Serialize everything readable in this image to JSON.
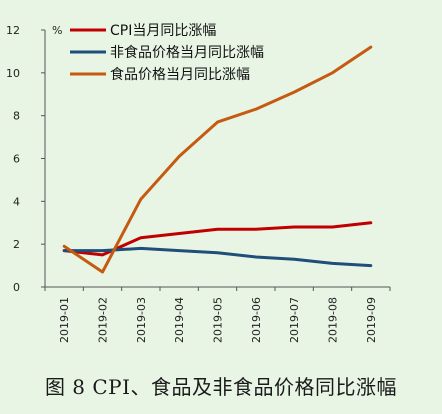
{
  "caption": "图 8   CPI、食品及非食品价格同比涨幅",
  "chart_data": {
    "type": "line",
    "title": "",
    "xlabel": "",
    "ylabel": "%",
    "ylim": [
      0,
      12
    ],
    "yticks": [
      0,
      2,
      4,
      6,
      8,
      10,
      12
    ],
    "categories": [
      "2019-01",
      "2019-02",
      "2019-03",
      "2019-04",
      "2019-05",
      "2019-06",
      "2019-07",
      "2019-08",
      "2019-09"
    ],
    "legend_position": "top-left",
    "grid": false,
    "series": [
      {
        "name": "CPI当月同比涨幅",
        "color": "#c00000",
        "values": [
          1.7,
          1.5,
          2.3,
          2.5,
          2.7,
          2.7,
          2.8,
          2.8,
          3.0
        ]
      },
      {
        "name": "非食品价格当月同比涨幅",
        "color": "#1f4e79",
        "values": [
          1.7,
          1.7,
          1.8,
          1.7,
          1.6,
          1.4,
          1.3,
          1.1,
          1.0
        ]
      },
      {
        "name": "食品价格当月同比涨幅",
        "color": "#c55a11",
        "values": [
          1.9,
          0.7,
          4.1,
          6.1,
          7.7,
          8.3,
          9.1,
          10.0,
          11.2
        ]
      }
    ]
  }
}
